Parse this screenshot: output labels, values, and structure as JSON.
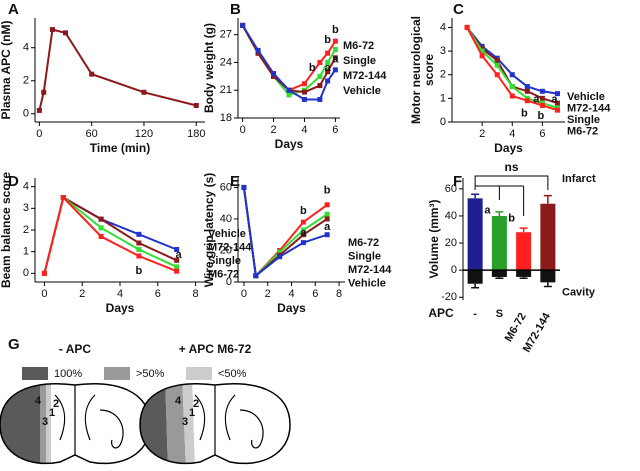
{
  "chart_data": [
    {
      "type": "line",
      "panel": "A",
      "ylabel": "Plasma APC (nM)",
      "xlabel": "Time (min)",
      "x": [
        0,
        5,
        15,
        30,
        60,
        120,
        180
      ],
      "values": [
        0.2,
        1.3,
        5.1,
        4.9,
        2.4,
        1.3,
        0.5
      ],
      "color": "#8b1a1a",
      "xlim": [
        -5,
        190
      ],
      "xticks": [
        0,
        60,
        120,
        180
      ],
      "ylim": [
        -0.5,
        5.8
      ],
      "yticks": [
        0,
        2,
        4
      ]
    },
    {
      "type": "line",
      "panel": "B",
      "ylabel": "Body weight (g)",
      "xlabel": "Days",
      "x": [
        0,
        1,
        2,
        3,
        4,
        5,
        5.5,
        6
      ],
      "series": [
        {
          "name": "M6-72",
          "color": "#ff2020",
          "values": [
            28,
            25,
            22.5,
            21,
            21.7,
            24,
            25,
            26.3
          ]
        },
        {
          "name": "Single",
          "color": "#33dd33",
          "values": [
            28,
            25,
            22.5,
            20.5,
            21,
            22.5,
            24,
            25.4
          ]
        },
        {
          "name": "M72-144",
          "color": "#8b1a1a",
          "values": [
            28,
            25,
            22.5,
            21,
            20.8,
            21.5,
            23,
            24.5
          ]
        },
        {
          "name": "Vehicle",
          "color": "#2233cc",
          "values": [
            28,
            25.3,
            22.8,
            21,
            20,
            20,
            22,
            23.2
          ]
        }
      ],
      "annotations": [
        {
          "text": "b",
          "x": 4.5,
          "y": 23.4
        },
        {
          "text": "b",
          "x": 5.5,
          "y": 26.4
        },
        {
          "text": "b",
          "x": 6,
          "y": 27.5
        },
        {
          "text": "a",
          "x": 5.5,
          "y": 23.4
        },
        {
          "text": "a",
          "x": 6,
          "y": 24.3
        }
      ],
      "xlim": [
        -0.3,
        6.3
      ],
      "xticks": [
        0,
        2,
        4,
        6
      ],
      "ylim": [
        18,
        28.8
      ],
      "yticks": [
        18,
        21,
        24,
        27
      ]
    },
    {
      "type": "line",
      "panel": "C",
      "ylabel": [
        "Motor neurological",
        "score"
      ],
      "xlabel": "Days",
      "x": [
        1,
        2,
        3,
        4,
        5,
        6,
        7
      ],
      "series": [
        {
          "name": "Vehicle",
          "color": "#2233cc",
          "values": [
            4,
            3.2,
            2.7,
            2,
            1.5,
            1.3,
            1.2
          ]
        },
        {
          "name": "M72-144",
          "color": "#8b1a1a",
          "values": [
            4,
            3.1,
            2.6,
            1.5,
            1.3,
            1,
            0.8
          ]
        },
        {
          "name": "Single",
          "color": "#33dd33",
          "values": [
            4,
            3,
            2.4,
            1.5,
            1,
            0.8,
            0.6
          ]
        },
        {
          "name": "M6-72",
          "color": "#ff2020",
          "values": [
            4,
            2.8,
            2,
            1.1,
            0.9,
            0.7,
            0.5
          ]
        }
      ],
      "annotations": [
        {
          "text": "b",
          "x": 4.8,
          "y": 0.35
        },
        {
          "text": "b",
          "x": 5.9,
          "y": 0.25
        },
        {
          "text": "a",
          "x": 5.6,
          "y": 0.95
        },
        {
          "text": "a",
          "x": 6.8,
          "y": 0.95
        }
      ],
      "xlim": [
        0,
        7.5
      ],
      "xticks": [
        2,
        4,
        6
      ],
      "ylim": [
        0,
        4.4
      ],
      "yticks": [
        0,
        1,
        2,
        3,
        4
      ]
    },
    {
      "type": "line",
      "panel": "D",
      "ylabel": "Beam balance score",
      "xlabel": "Days",
      "x": [
        0,
        1,
        3,
        5,
        7
      ],
      "series": [
        {
          "name": "Vehicle",
          "color": "#2233cc",
          "values": [
            0,
            3.5,
            2.5,
            1.8,
            1.1
          ]
        },
        {
          "name": "M72-144",
          "color": "#8b1a1a",
          "values": [
            0,
            3.5,
            2.5,
            1.4,
            0.6
          ]
        },
        {
          "name": "Single",
          "color": "#33dd33",
          "values": [
            0,
            3.5,
            2.1,
            1.1,
            0.3
          ]
        },
        {
          "name": "M6-72",
          "color": "#ff2020",
          "values": [
            0,
            3.5,
            1.7,
            0.8,
            0.1
          ]
        }
      ],
      "annotations": [
        {
          "text": "a",
          "x": 7.1,
          "y": 0.85
        },
        {
          "text": "b",
          "x": 5,
          "y": 0.1
        }
      ],
      "xlim": [
        -0.5,
        8.5
      ],
      "xticks": [
        0,
        2,
        4,
        6,
        8
      ],
      "ylim": [
        -0.4,
        4.4
      ],
      "yticks": [
        0,
        1,
        2,
        3,
        4
      ]
    },
    {
      "type": "line",
      "panel": "E",
      "ylabel": "Wire grip latency (s)",
      "xlabel": "Days",
      "x": [
        0,
        1,
        3,
        5,
        7
      ],
      "series": [
        {
          "name": "M6-72",
          "color": "#ff2020",
          "values": [
            60,
            4,
            20,
            38,
            49
          ]
        },
        {
          "name": "Single",
          "color": "#33dd33",
          "values": [
            60,
            4,
            19,
            33,
            43
          ]
        },
        {
          "name": "M72-144",
          "color": "#8b1a1a",
          "values": [
            60,
            4,
            17,
            30,
            40
          ]
        },
        {
          "name": "Vehicle",
          "color": "#2233cc",
          "values": [
            60,
            4,
            16,
            25,
            30
          ]
        }
      ],
      "annotations": [
        {
          "text": "b",
          "x": 5,
          "y": 45
        },
        {
          "text": "b",
          "x": 7,
          "y": 58
        },
        {
          "text": "a",
          "x": 5,
          "y": 31
        },
        {
          "text": "a",
          "x": 7,
          "y": 35
        }
      ],
      "xlim": [
        -0.5,
        8.5
      ],
      "xticks": [
        0,
        2,
        4,
        6,
        8
      ],
      "ylim": [
        0,
        66
      ],
      "yticks": [
        0,
        20,
        40,
        60
      ]
    },
    {
      "type": "bar",
      "panel": "F",
      "ylabel": "Volume (mm³)",
      "xlabel": "APC",
      "categories": [
        "-",
        "S",
        "M6-72",
        "M72-144"
      ],
      "series": [
        {
          "name": "Infarct",
          "colors": [
            "#1f1f8f",
            "#2aa02a",
            "#ff2020",
            "#8b1a1a"
          ],
          "values": [
            53,
            40,
            28,
            49
          ],
          "errors": [
            3,
            3,
            3,
            6
          ]
        },
        {
          "name": "Cavity",
          "color": "#111111",
          "values": [
            -10,
            -5,
            -5,
            -9
          ],
          "errors": [
            3,
            1,
            1,
            3
          ]
        }
      ],
      "significance": "ns",
      "annotations": [
        {
          "text": "a",
          "x": 1,
          "y": 44
        },
        {
          "text": "b",
          "x": 2,
          "y": 38
        }
      ],
      "ylim": [
        -22,
        68
      ],
      "yticks": [
        -20,
        0,
        20,
        40,
        60
      ]
    }
  ],
  "diagram": {
    "panel": "G",
    "legend": [
      "100%",
      ">50%",
      "<50%"
    ],
    "sections": [
      {
        "title": "- APC",
        "regions": [
          "4",
          "2",
          "1",
          "3"
        ]
      },
      {
        "title": "+ APC M6-72",
        "regions": [
          "4",
          "2",
          "1",
          "3"
        ]
      }
    ]
  }
}
